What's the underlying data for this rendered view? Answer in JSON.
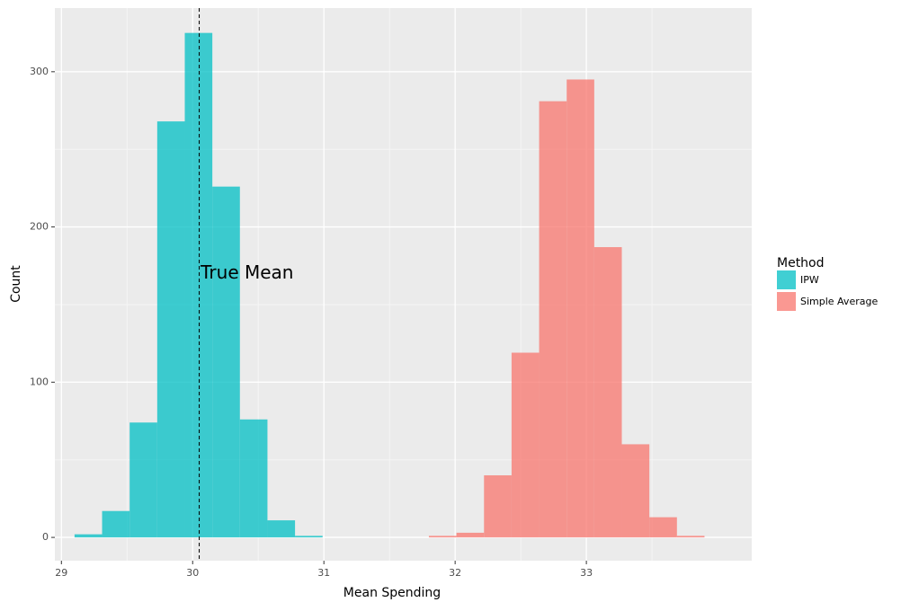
{
  "chart_data": {
    "type": "bar",
    "title": "",
    "xlabel": "Mean Spending",
    "ylabel": "Count",
    "xlim": [
      28.95,
      34.26
    ],
    "ylim": [
      -15,
      341
    ],
    "x_ticks": [
      29,
      30,
      31,
      32,
      33
    ],
    "y_ticks": [
      0,
      100,
      200,
      300
    ],
    "grid": true,
    "legend": {
      "title": "Method",
      "position": "right"
    },
    "annotation": {
      "text": "True Mean",
      "x": 30.02,
      "y": 170
    },
    "reference_line": {
      "x": 30.05,
      "style": "dashed"
    },
    "series": [
      {
        "name": "IPW",
        "color": "#00BFC4",
        "bins": [
          {
            "x0": 29.1,
            "x1": 29.31,
            "count": 2
          },
          {
            "x0": 29.31,
            "x1": 29.52,
            "count": 17
          },
          {
            "x0": 29.52,
            "x1": 29.73,
            "count": 74
          },
          {
            "x0": 29.73,
            "x1": 29.94,
            "count": 268
          },
          {
            "x0": 29.94,
            "x1": 30.15,
            "count": 325
          },
          {
            "x0": 30.15,
            "x1": 30.36,
            "count": 226
          },
          {
            "x0": 30.36,
            "x1": 30.57,
            "count": 76
          },
          {
            "x0": 30.57,
            "x1": 30.78,
            "count": 11
          },
          {
            "x0": 30.78,
            "x1": 30.99,
            "count": 1
          }
        ]
      },
      {
        "name": "Simple Average",
        "color": "#F8766D",
        "bins": [
          {
            "x0": 31.8,
            "x1": 32.01,
            "count": 1
          },
          {
            "x0": 32.01,
            "x1": 32.22,
            "count": 3
          },
          {
            "x0": 32.22,
            "x1": 32.43,
            "count": 40
          },
          {
            "x0": 32.43,
            "x1": 32.64,
            "count": 119
          },
          {
            "x0": 32.64,
            "x1": 32.85,
            "count": 281
          },
          {
            "x0": 32.85,
            "x1": 33.06,
            "count": 295
          },
          {
            "x0": 33.06,
            "x1": 33.27,
            "count": 187
          },
          {
            "x0": 33.27,
            "x1": 33.48,
            "count": 60
          },
          {
            "x0": 33.48,
            "x1": 33.69,
            "count": 13
          },
          {
            "x0": 33.69,
            "x1": 33.9,
            "count": 1
          }
        ]
      }
    ]
  }
}
